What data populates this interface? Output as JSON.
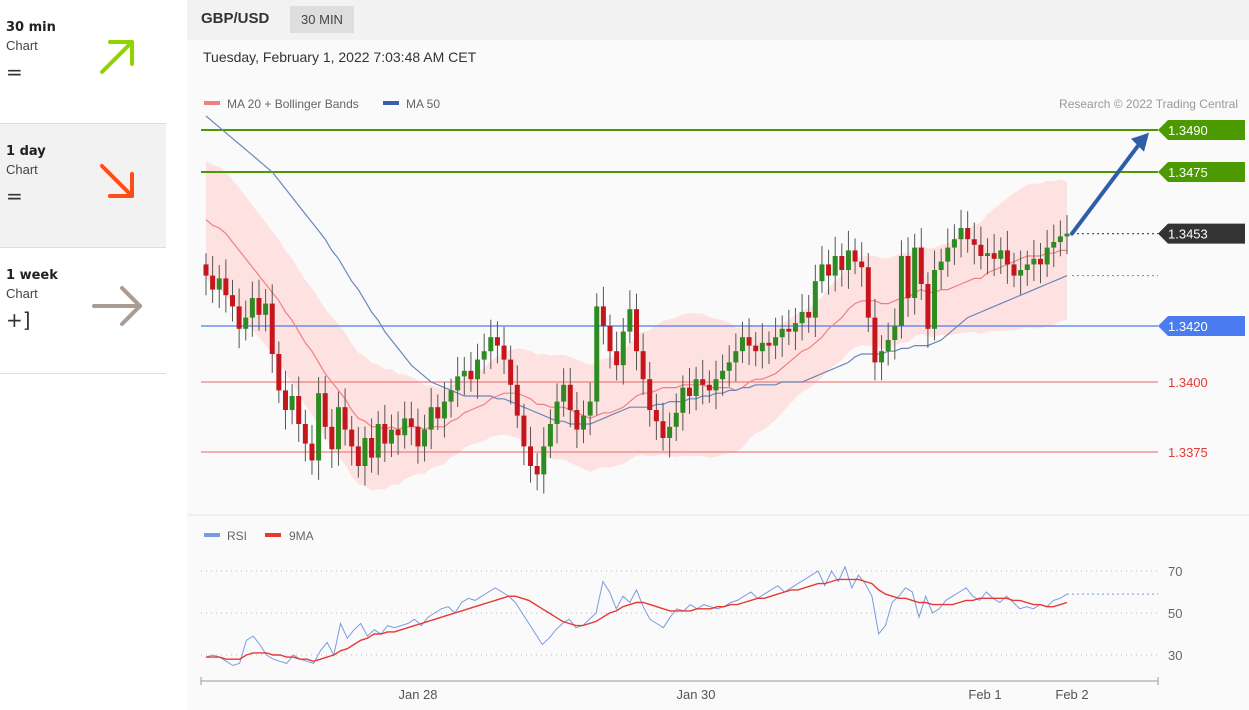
{
  "sidebar": {
    "items": [
      {
        "name": "30 min",
        "sub": "Chart",
        "sign": "=",
        "arrow": "up-right-arrow",
        "color": "#8fd400"
      },
      {
        "name": "1 day",
        "sub": "Chart",
        "sign": "=",
        "arrow": "down-right-arrow",
        "color": "#ff4d17"
      },
      {
        "name": "1 week",
        "sub": "Chart",
        "sign": "+]",
        "arrow": "right-arrow",
        "color": "#a89c94"
      }
    ]
  },
  "header": {
    "symbol": "GBP/USD",
    "period": "30 MIN"
  },
  "datetime": "Tuesday, February 1, 2022 7:03:48 AM CET",
  "copyright": "Research © 2022 Trading Central",
  "colors": {
    "up": "#2e8b22",
    "down": "#c4161c",
    "green_level": "#4c9a00",
    "blue_level": "#4a7cf0",
    "red_level": "#f08080",
    "band": "#ffd9d9",
    "ma20": "#f08080",
    "ma50": "#6b86b8",
    "rsi": "#7b9be0",
    "rsi_ma": "#e53935"
  },
  "chart_data": [
    {
      "type": "candlestick",
      "title": "GBP/USD",
      "legend": [
        {
          "label": "MA 20 + Bollinger Bands",
          "color": "#f08080"
        },
        {
          "label": "MA 50",
          "color": "#3b5ea8"
        }
      ],
      "y_range": [
        1.3354,
        1.3498
      ],
      "x_labels": [
        "Jan 28",
        "Jan 30",
        "Feb 1",
        "Feb 2"
      ],
      "levels": [
        {
          "value": 1.349,
          "label": "1.3490",
          "kind": "resistance"
        },
        {
          "value": 1.3475,
          "label": "1.3475",
          "kind": "resistance"
        },
        {
          "value": 1.3453,
          "label": "1.3453",
          "kind": "current"
        },
        {
          "value": 1.342,
          "label": "1.3420",
          "kind": "pivot"
        },
        {
          "value": 1.34,
          "label": "1.3400",
          "kind": "support"
        },
        {
          "value": 1.3375,
          "label": "1.3375",
          "kind": "support"
        }
      ],
      "forecast_arrow": {
        "from": 1.3453,
        "to": 1.3489
      },
      "close": [
        1.3438,
        1.3433,
        1.3437,
        1.3431,
        1.3427,
        1.3419,
        1.3423,
        1.343,
        1.3424,
        1.3428,
        1.341,
        1.3397,
        1.339,
        1.3395,
        1.3385,
        1.3378,
        1.3372,
        1.3396,
        1.3384,
        1.3376,
        1.3391,
        1.3383,
        1.3377,
        1.337,
        1.338,
        1.3373,
        1.3385,
        1.3378,
        1.3383,
        1.3381,
        1.3387,
        1.3384,
        1.3377,
        1.3383,
        1.3391,
        1.3387,
        1.3393,
        1.3397,
        1.3402,
        1.3404,
        1.3401,
        1.3408,
        1.3411,
        1.3416,
        1.3413,
        1.3408,
        1.3399,
        1.3388,
        1.3377,
        1.337,
        1.3367,
        1.3377,
        1.3385,
        1.3393,
        1.3399,
        1.339,
        1.3383,
        1.3388,
        1.3393,
        1.3427,
        1.342,
        1.3411,
        1.3406,
        1.3418,
        1.3426,
        1.3411,
        1.3401,
        1.339,
        1.3386,
        1.338,
        1.3384,
        1.3389,
        1.3398,
        1.3395,
        1.3401,
        1.3399,
        1.3397,
        1.3401,
        1.3404,
        1.3407,
        1.3411,
        1.3416,
        1.3413,
        1.3411,
        1.3414,
        1.3413,
        1.3416,
        1.3419,
        1.3418,
        1.3421,
        1.3425,
        1.3423,
        1.3436,
        1.3442,
        1.3438,
        1.3445,
        1.344,
        1.3447,
        1.3443,
        1.3441,
        1.3423,
        1.3407,
        1.3411,
        1.3415,
        1.342,
        1.3445,
        1.343,
        1.3448,
        1.3435,
        1.3419,
        1.344,
        1.3443,
        1.3448,
        1.3451,
        1.3455,
        1.3451,
        1.3449,
        1.3445,
        1.3446,
        1.3444,
        1.3447,
        1.3442,
        1.3438,
        1.344,
        1.3442,
        1.3444,
        1.3442,
        1.3448,
        1.345,
        1.3452,
        1.3453
      ],
      "ma20": [
        1.3458,
        1.3456,
        1.3455,
        1.3453,
        1.345,
        1.3447,
        1.3444,
        1.3441,
        1.3438,
        1.3435,
        1.3432,
        1.3429,
        1.3425,
        1.3422,
        1.3418,
        1.3414,
        1.3411,
        1.3407,
        1.3403,
        1.34,
        1.3397,
        1.3394,
        1.339,
        1.3387,
        1.3386,
        1.3384,
        1.3384,
        1.3383,
        1.3384,
        1.3383,
        1.3384,
        1.3384,
        1.3384,
        1.3383,
        1.3384,
        1.3384,
        1.3384,
        1.3386,
        1.3387,
        1.3389,
        1.339,
        1.3391,
        1.3392,
        1.3394,
        1.3395,
        1.3396,
        1.3396,
        1.3396,
        1.3395,
        1.3394,
        1.3392,
        1.3392,
        1.3391,
        1.3391,
        1.3391,
        1.339,
        1.3389,
        1.3388,
        1.3387,
        1.3388,
        1.3389,
        1.3389,
        1.339,
        1.3391,
        1.3393,
        1.3395,
        1.3396,
        1.3396,
        1.3397,
        1.3398,
        1.3398,
        1.3398,
        1.3399,
        1.3399,
        1.3399,
        1.3399,
        1.3398,
        1.3398,
        1.3398,
        1.3398,
        1.3397,
        1.3398,
        1.34,
        1.3401,
        1.3401,
        1.3402,
        1.3403,
        1.3405,
        1.3407,
        1.3409,
        1.3411,
        1.3412,
        1.3414,
        1.3416,
        1.3419,
        1.3421,
        1.3423,
        1.3426,
        1.3428,
        1.3429,
        1.3429,
        1.3429,
        1.3428,
        1.3428,
        1.3429,
        1.343,
        1.343,
        1.3432,
        1.3433,
        1.3432,
        1.3432,
        1.3433,
        1.3433,
        1.3434,
        1.3435,
        1.3436,
        1.3437,
        1.3437,
        1.3439,
        1.344,
        1.3441,
        1.3442,
        1.3443,
        1.3444,
        1.3445,
        1.3445,
        1.3445,
        1.3446,
        1.3446,
        1.3447,
        1.3447
      ],
      "ma50": [
        1.3495,
        1.3493,
        1.3491,
        1.3489,
        1.3487,
        1.3485,
        1.3483,
        1.3481,
        1.3479,
        1.3477,
        1.3475,
        1.3472,
        1.3469,
        1.3466,
        1.3463,
        1.346,
        1.3457,
        1.3454,
        1.3451,
        1.3447,
        1.3444,
        1.344,
        1.3436,
        1.3433,
        1.3429,
        1.3425,
        1.3422,
        1.3418,
        1.3415,
        1.3412,
        1.3409,
        1.3406,
        1.3404,
        1.3402,
        1.34,
        1.3399,
        1.3398,
        1.3397,
        1.3396,
        1.3395,
        1.3395,
        1.3395,
        1.3395,
        1.3395,
        1.3394,
        1.3394,
        1.3393,
        1.3392,
        1.3391,
        1.339,
        1.3389,
        1.3388,
        1.3387,
        1.3386,
        1.3386,
        1.3385,
        1.3385,
        1.3385,
        1.3385,
        1.3386,
        1.3387,
        1.3388,
        1.3389,
        1.339,
        1.3391,
        1.3391,
        1.3391,
        1.3391,
        1.3392,
        1.3392,
        1.3393,
        1.3393,
        1.3393,
        1.3394,
        1.3394,
        1.3395,
        1.3395,
        1.3396,
        1.3396,
        1.3397,
        1.3397,
        1.3398,
        1.3398,
        1.3399,
        1.3399,
        1.3399,
        1.3399,
        1.34,
        1.34,
        1.34,
        1.34,
        1.3401,
        1.3402,
        1.3403,
        1.3404,
        1.3405,
        1.3406,
        1.3407,
        1.3409,
        1.341,
        1.341,
        1.341,
        1.341,
        1.3411,
        1.3411,
        1.3412,
        1.3412,
        1.3413,
        1.3413,
        1.3413,
        1.3414,
        1.3415,
        1.3417,
        1.3419,
        1.3421,
        1.3423,
        1.3424,
        1.3425,
        1.3426,
        1.3427,
        1.3428,
        1.3429,
        1.343,
        1.3431,
        1.3432,
        1.3433,
        1.3434,
        1.3435,
        1.3436,
        1.3437,
        1.3438
      ]
    },
    {
      "type": "line",
      "title": "RSI",
      "legend": [
        {
          "label": "RSI",
          "color": "#7b9be0"
        },
        {
          "label": "9MA",
          "color": "#e53935"
        }
      ],
      "y_range": [
        20,
        75
      ],
      "y_ticks": [
        70,
        50,
        30
      ],
      "rsi": [
        29,
        30,
        29,
        27,
        25,
        26,
        37,
        39,
        35,
        30,
        28,
        27,
        26,
        30,
        28,
        27,
        26,
        32,
        36,
        30,
        45,
        38,
        42,
        45,
        39,
        42,
        40,
        44,
        43,
        44,
        45,
        47,
        44,
        48,
        50,
        52,
        53,
        50,
        55,
        57,
        56,
        58,
        60,
        62,
        60,
        58,
        55,
        50,
        45,
        40,
        35,
        38,
        42,
        45,
        47,
        43,
        44,
        47,
        50,
        65,
        60,
        52,
        58,
        55,
        61,
        53,
        47,
        45,
        43,
        48,
        52,
        51,
        54,
        52,
        54,
        53,
        52,
        53,
        55,
        56,
        58,
        60,
        57,
        59,
        61,
        63,
        60,
        62,
        64,
        66,
        68,
        70,
        63,
        70,
        65,
        72,
        62,
        68,
        64,
        58,
        40,
        44,
        55,
        58,
        62,
        60,
        48,
        58,
        50,
        52,
        56,
        58,
        60,
        62,
        58,
        56,
        60,
        57,
        55,
        58,
        55,
        52,
        53,
        52,
        54,
        53,
        56,
        57,
        59
      ],
      "rsi_ma": [
        29,
        29,
        29,
        28,
        28,
        28,
        30,
        31,
        31,
        31,
        30,
        30,
        29,
        29,
        28,
        28,
        27,
        28,
        29,
        30,
        32,
        33,
        35,
        37,
        38,
        40,
        40,
        41,
        41,
        42,
        43,
        44,
        45,
        46,
        47,
        48,
        49,
        50,
        51,
        52,
        53,
        54,
        55,
        56,
        57,
        58,
        58,
        57,
        56,
        54,
        52,
        50,
        48,
        46,
        45,
        44,
        44,
        45,
        46,
        48,
        50,
        51,
        53,
        54,
        55,
        55,
        54,
        53,
        52,
        51,
        51,
        51,
        51,
        52,
        52,
        52,
        53,
        53,
        54,
        54,
        55,
        56,
        57,
        57,
        58,
        59,
        60,
        61,
        61,
        62,
        63,
        64,
        64,
        65,
        66,
        66,
        66,
        66,
        65,
        64,
        61,
        59,
        58,
        57,
        57,
        56,
        55,
        55,
        54,
        54,
        54,
        54,
        55,
        56,
        56,
        57,
        57,
        57,
        57,
        57,
        56,
        56,
        55,
        54,
        54,
        53,
        53,
        54,
        55
      ]
    }
  ]
}
